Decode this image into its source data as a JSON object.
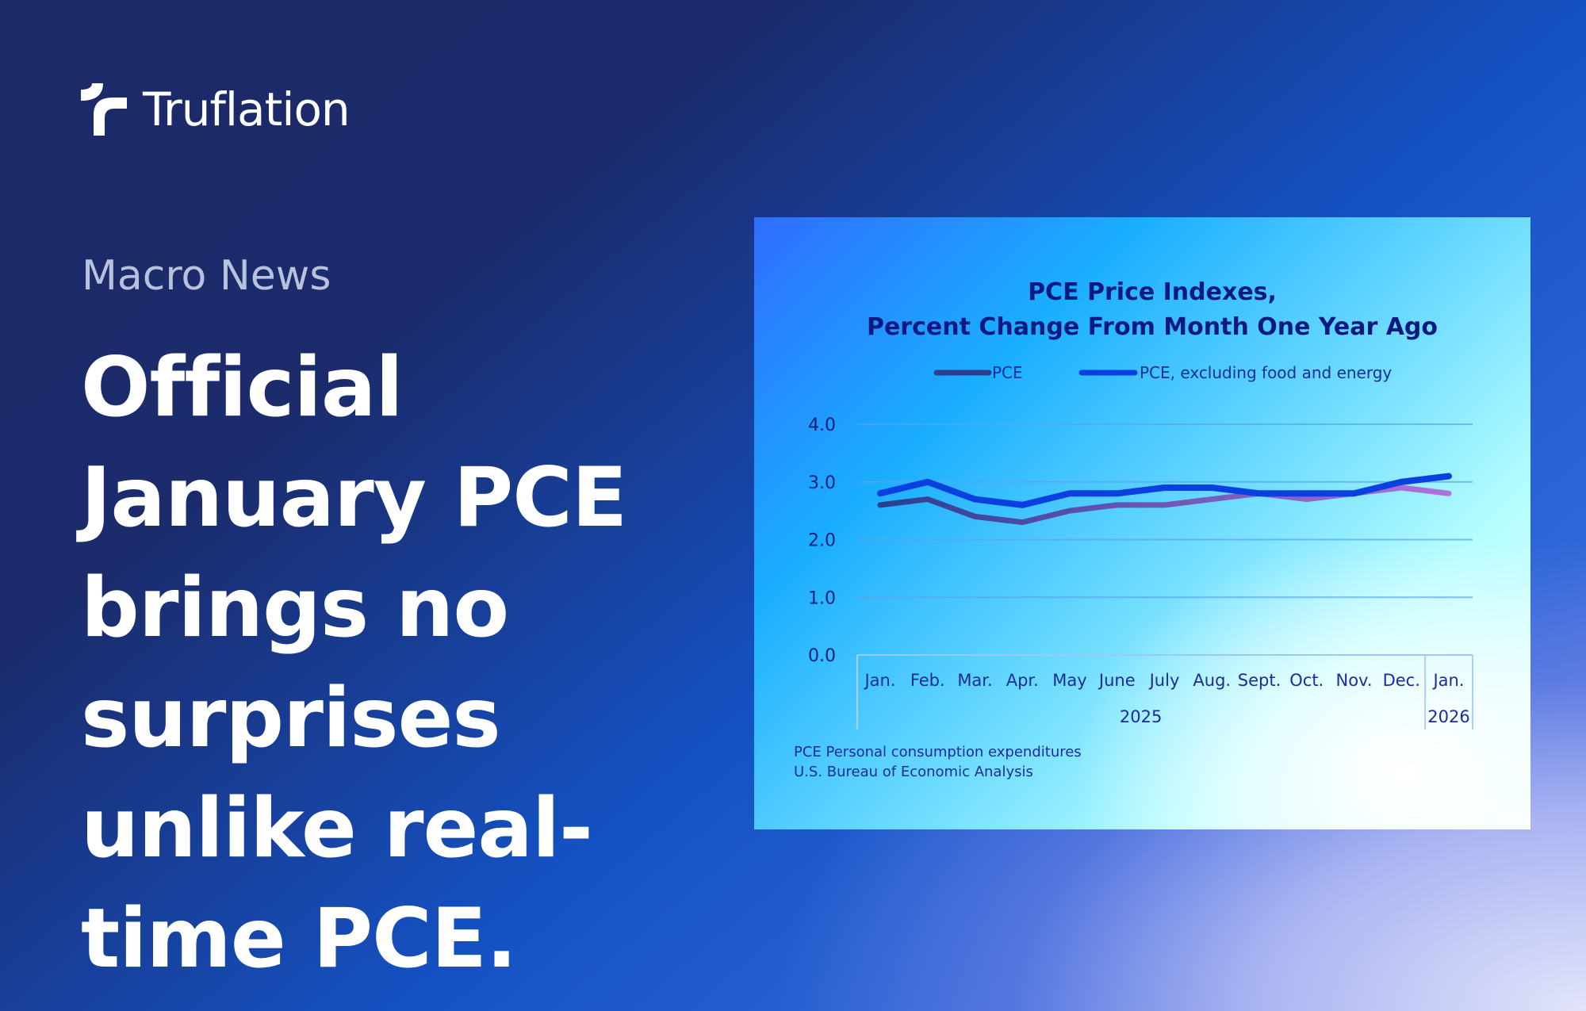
{
  "brand": {
    "name": "Truflation"
  },
  "kicker": "Macro News",
  "headline": "Official January PCE brings no surprises unlike real-time PCE.",
  "chart_data": {
    "type": "line",
    "title": [
      "PCE Price Indexes,",
      "Percent Change From Month One Year Ago"
    ],
    "categories": [
      "Jan.",
      "Feb.",
      "Mar.",
      "Apr.",
      "May",
      "June",
      "July",
      "Aug.",
      "Sept.",
      "Oct.",
      "Nov.",
      "Dec.",
      "Jan."
    ],
    "year_labels": [
      {
        "label": "2025",
        "span": [
          0,
          11
        ]
      },
      {
        "label": "2026",
        "span": [
          12,
          12
        ]
      }
    ],
    "series": [
      {
        "name": "PCE",
        "color": "#2a3f8f",
        "color_end": "#b070e0",
        "values": [
          2.6,
          2.7,
          2.4,
          2.3,
          2.5,
          2.6,
          2.6,
          2.7,
          2.8,
          2.7,
          2.8,
          2.9,
          2.8
        ]
      },
      {
        "name": "PCE, excluding food and energy",
        "color": "#0a3fe0",
        "values": [
          2.8,
          3.0,
          2.7,
          2.6,
          2.8,
          2.8,
          2.9,
          2.9,
          2.8,
          2.8,
          2.8,
          3.0,
          3.1
        ]
      }
    ],
    "yticks": [
      "0.0",
      "1.0",
      "2.0",
      "3.0",
      "4.0"
    ],
    "ylim": [
      0,
      4
    ],
    "grid": true,
    "legend": "top-center",
    "footnotes": [
      "PCE Personal consumption expenditures",
      "U.S. Bureau of Economic Analysis"
    ]
  }
}
